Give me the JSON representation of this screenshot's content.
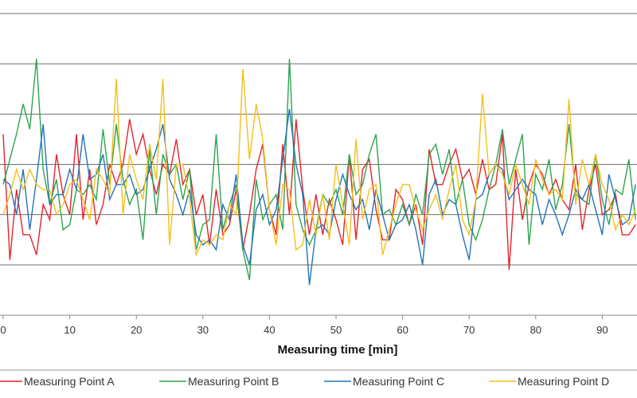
{
  "chart_data": {
    "type": "line",
    "xlabel": "Measuring time [min]",
    "ylabel": "",
    "xlim": [
      0,
      95
    ],
    "ylim": [
      0,
      6
    ],
    "x_ticks": [
      0,
      10,
      20,
      30,
      40,
      50,
      60,
      70,
      80,
      90
    ],
    "y_gridlines": [
      0,
      1,
      2,
      3,
      4,
      5,
      6
    ],
    "grid": true,
    "legend_placement": "bottom",
    "series": [
      {
        "name": "Measuring Point A",
        "color": "#e2252b",
        "values": [
          3.6,
          1.1,
          2.5,
          1.6,
          1.6,
          1.2,
          2.2,
          1.9,
          3.2,
          2.4,
          2.0,
          3.6,
          1.9,
          2.9,
          1.8,
          2.2,
          3.0,
          2.6,
          3.0,
          3.9,
          3.2,
          3.6,
          2.9,
          2.4,
          3.0,
          2.8,
          3.5,
          2.6,
          2.9,
          2.0,
          2.4,
          1.4,
          2.5,
          1.6,
          1.8,
          2.5,
          1.3,
          2.0,
          2.9,
          3.4,
          2.1,
          1.6,
          3.4,
          2.0,
          3.9,
          2.5,
          1.6,
          2.4,
          1.6,
          2.3,
          1.9,
          1.4,
          3.2,
          1.5,
          2.9,
          3.1,
          2.1,
          1.5,
          1.5,
          2.5,
          2.3,
          1.8,
          2.2,
          1.4,
          3.3,
          2.6,
          2.6,
          3.0,
          3.3,
          2.7,
          2.9,
          2.4,
          3.1,
          2.5,
          2.6,
          3.6,
          0.9,
          2.9,
          1.9,
          2.6,
          3.0,
          2.8,
          2.4,
          2.7,
          2.3,
          2.1,
          3.0,
          1.7,
          2.5,
          3.0,
          2.0,
          2.1,
          2.4,
          1.6,
          1.6,
          1.8
        ]
      },
      {
        "name": "Measuring Point B",
        "color": "#2ea34f",
        "values": [
          2.6,
          3.1,
          3.6,
          4.2,
          3.7,
          5.1,
          2.9,
          2.2,
          2.7,
          1.7,
          1.8,
          2.5,
          2.4,
          2.6,
          2.3,
          3.7,
          2.6,
          3.8,
          2.7,
          2.2,
          2.5,
          1.5,
          3.3,
          2.0,
          3.2,
          2.8,
          3.0,
          2.3,
          2.9,
          1.3,
          1.8,
          1.9,
          3.6,
          1.7,
          2.2,
          2.6,
          1.3,
          0.7,
          2.7,
          1.9,
          2.2,
          2.4,
          1.7,
          5.1,
          2.2,
          1.7,
          1.4,
          1.7,
          2.4,
          2.2,
          2.5,
          2.0,
          3.2,
          2.4,
          2.6,
          3.2,
          3.6,
          2.0,
          2.1,
          1.8,
          2.2,
          1.8,
          2.4,
          2.0,
          3.2,
          3.4,
          2.8,
          3.3,
          2.2,
          2.7,
          1.8,
          1.5,
          1.9,
          2.5,
          3.0,
          3.7,
          2.6,
          3.1,
          3.6,
          1.4,
          2.8,
          2.5,
          3.1,
          2.1,
          2.6,
          3.8,
          2.4,
          2.3,
          2.2,
          3.2,
          2.3,
          1.8,
          2.5,
          2.4,
          3.1,
          1.9
        ]
      },
      {
        "name": "Measuring Point C",
        "color": "#2373b9",
        "values": [
          2.7,
          2.6,
          2.0,
          2.9,
          1.7,
          2.7,
          3.8,
          2.2,
          2.4,
          2.4,
          2.9,
          2.5,
          3.6,
          2.7,
          2.8,
          3.2,
          2.3,
          2.6,
          2.6,
          2.8,
          2.4,
          2.5,
          2.9,
          3.3,
          3.8,
          2.7,
          2.4,
          2.0,
          2.5,
          1.6,
          1.4,
          1.5,
          1.3,
          2.2,
          1.9,
          2.8,
          1.4,
          1.0,
          2.1,
          2.4,
          1.8,
          2.1,
          3.1,
          4.1,
          3.0,
          2.4,
          0.6,
          1.7,
          1.8,
          1.6,
          2.3,
          2.8,
          2.4,
          2.1,
          2.3,
          1.7,
          2.5,
          2.0,
          1.5,
          1.8,
          1.9,
          2.2,
          1.7,
          1.0,
          2.4,
          2.7,
          2.0,
          2.3,
          2.2,
          1.6,
          1.1,
          2.3,
          2.4,
          2.8,
          3.0,
          2.9,
          2.3,
          2.5,
          2.7,
          2.5,
          2.4,
          1.8,
          2.3,
          2.0,
          1.6,
          2.0,
          2.5,
          2.3,
          2.6,
          2.1,
          1.6,
          2.8,
          2.3,
          1.8,
          1.9,
          2.6
        ]
      },
      {
        "name": "Measuring Point D",
        "color": "#f5bf1a",
        "values": [
          2.0,
          2.4,
          2.9,
          2.5,
          2.9,
          2.6,
          2.5,
          2.5,
          2.0,
          2.2,
          2.6,
          2.7,
          2.3,
          1.9,
          2.9,
          2.7,
          2.4,
          4.7,
          2.0,
          3.2,
          2.7,
          2.3,
          3.4,
          2.7,
          4.7,
          1.4,
          3.0,
          3.0,
          2.3,
          1.2,
          1.5,
          1.4,
          1.6,
          1.5,
          2.2,
          2.0,
          4.9,
          3.1,
          4.2,
          3.5,
          2.1,
          1.4,
          2.6,
          2.5,
          1.3,
          1.4,
          2.3,
          1.6,
          2.4,
          1.5,
          3.0,
          2.2,
          1.4,
          3.5,
          1.9,
          2.5,
          2.6,
          1.2,
          1.7,
          2.2,
          2.6,
          2.6,
          2.1,
          1.7,
          2.1,
          2.4,
          1.9,
          2.5,
          3.0,
          1.9,
          1.6,
          2.3,
          4.4,
          2.8,
          3.0,
          2.8,
          2.4,
          3.0,
          2.6,
          2.2,
          3.1,
          2.7,
          2.4,
          2.5,
          2.3,
          4.3,
          2.2,
          3.1,
          2.6,
          3.2,
          2.6,
          2.3,
          1.7,
          2.0,
          1.8,
          2.1
        ]
      }
    ]
  }
}
